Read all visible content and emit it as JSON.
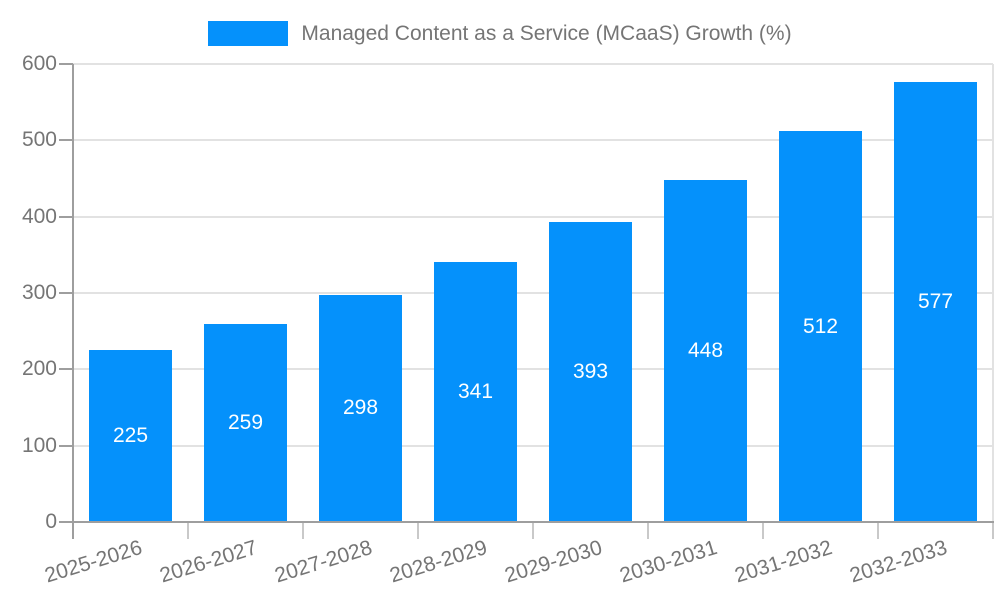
{
  "chart_data": {
    "type": "bar",
    "title": "Managed Content as a Service (MCaaS) Growth (%)",
    "categories": [
      "2025-2026",
      "2026-2027",
      "2027-2028",
      "2028-2029",
      "2029-2030",
      "2030-2031",
      "2031-2032",
      "2032-2033"
    ],
    "values": [
      225,
      259,
      298,
      341,
      393,
      448,
      512,
      577
    ],
    "value_labels": [
      "225",
      "259",
      "298",
      "341",
      "393",
      "448",
      "512",
      "577"
    ],
    "yticks": [
      "0",
      "100",
      "200",
      "300",
      "400",
      "500",
      "600"
    ],
    "ylim": [
      0,
      600
    ],
    "xlabel": "",
    "ylabel": "",
    "grid": true,
    "legend_position": "top-center",
    "value_labels_inside_bars": true,
    "colors": {
      "bar": "#0591fb",
      "text": "#757575",
      "grid": "#e2e2e2",
      "axis": "#9e9e9e",
      "minor_tick": "#c9c9c9",
      "value_label": "#ffffff",
      "background": "#ffffff"
    }
  }
}
